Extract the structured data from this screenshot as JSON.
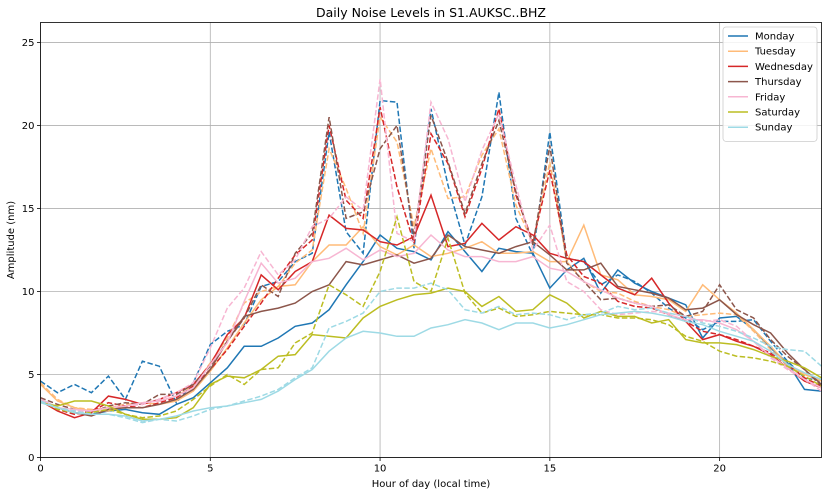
{
  "chart_data": {
    "type": "line",
    "title": "Daily Noise Levels in S1.AUKSC..BHZ",
    "xlabel": "Hour of day (local time)",
    "ylabel": "Amplitude (nm)",
    "xlim": [
      0,
      23
    ],
    "ylim": [
      0,
      26.2
    ],
    "xticks": [
      0,
      5,
      10,
      15,
      20
    ],
    "yticks": [
      0,
      5,
      10,
      15,
      20,
      25
    ],
    "grid": true,
    "legend_position": "top-right",
    "x": [
      0,
      0.5,
      1,
      1.5,
      2,
      2.5,
      3,
      3.5,
      4,
      4.5,
      5,
      5.5,
      6,
      6.5,
      7,
      7.5,
      8,
      8.5,
      9,
      9.5,
      10,
      10.5,
      11,
      11.5,
      12,
      12.5,
      13,
      13.5,
      14,
      14.5,
      15,
      15.5,
      16,
      16.5,
      17,
      17.5,
      18,
      18.5,
      19,
      19.5,
      20,
      20.5,
      21,
      21.5,
      22,
      22.5,
      23
    ],
    "series": [
      {
        "name": "Monday",
        "color": "#1f77b4",
        "solid": [
          3.5,
          3.0,
          2.7,
          2.6,
          2.8,
          2.9,
          2.7,
          2.6,
          3.2,
          3.6,
          4.5,
          5.4,
          6.7,
          6.7,
          7.2,
          7.9,
          8.1,
          8.9,
          10.4,
          11.8,
          13.4,
          12.6,
          12.4,
          11.9,
          13.6,
          12.4,
          11.2,
          12.6,
          12.4,
          12.3,
          10.2,
          11.3,
          12.0,
          9.9,
          11.3,
          10.5,
          10.0,
          9.6,
          9.2,
          7.2,
          8.4,
          8.5,
          7.7,
          6.6,
          5.7,
          4.1,
          4.0
        ],
        "dashed": [
          4.6,
          3.9,
          4.4,
          3.9,
          4.9,
          3.5,
          5.8,
          5.5,
          3.3,
          4.5,
          6.8,
          7.6,
          8.0,
          10.3,
          10.6,
          11.8,
          12.3,
          19.6,
          13.6,
          12.3,
          21.5,
          21.4,
          12.6,
          21.0,
          16.4,
          12.8,
          15.7,
          22.0,
          14.4,
          12.2,
          19.6,
          12.0,
          11.8,
          10.4,
          11.0,
          10.6,
          9.9,
          9.0,
          8.4,
          7.7,
          8.2,
          8.2,
          8.3,
          7.0,
          5.8,
          4.8,
          4.6
        ]
      },
      {
        "name": "Tuesday",
        "color": "#ffbb78",
        "solid": [
          4.4,
          3.4,
          3.0,
          2.8,
          2.8,
          3.1,
          3.3,
          3.2,
          3.4,
          4.0,
          5.2,
          6.6,
          8.1,
          9.5,
          10.3,
          10.4,
          11.8,
          12.8,
          12.8,
          13.9,
          12.7,
          12.2,
          12.8,
          12.1,
          12.3,
          12.6,
          13.0,
          12.3,
          12.3,
          12.4,
          11.8,
          11.8,
          14.0,
          11.0,
          10.7,
          9.8,
          9.7,
          9.5,
          8.8,
          10.4,
          9.5,
          8.7,
          7.7,
          6.7,
          5.6,
          5.0,
          4.6
        ],
        "dashed": [
          4.5,
          3.5,
          3.0,
          2.9,
          3.0,
          3.2,
          3.3,
          3.4,
          3.7,
          4.3,
          5.7,
          7.2,
          9.3,
          10.0,
          10.3,
          11.7,
          12.5,
          18.6,
          16.2,
          13.5,
          20.5,
          19.0,
          13.9,
          18.6,
          15.6,
          15.7,
          18.2,
          19.8,
          15.2,
          12.9,
          17.8,
          11.8,
          10.6,
          10.0,
          9.9,
          9.4,
          9.1,
          8.9,
          8.5,
          8.6,
          8.7,
          8.6,
          7.6,
          6.5,
          5.5,
          5.1,
          4.6
        ]
      },
      {
        "name": "Wednesday",
        "color": "#d62728",
        "solid": [
          3.4,
          2.8,
          2.4,
          2.7,
          3.7,
          3.5,
          3.2,
          3.5,
          3.9,
          4.4,
          5.6,
          7.4,
          8.4,
          11.0,
          10.1,
          11.2,
          11.8,
          14.6,
          13.8,
          13.7,
          13.0,
          12.8,
          13.3,
          15.8,
          12.7,
          12.9,
          14.1,
          13.1,
          13.9,
          13.4,
          12.3,
          12.0,
          11.8,
          11.0,
          10.2,
          9.8,
          10.8,
          9.3,
          8.2,
          7.1,
          7.4,
          7.0,
          6.7,
          6.2,
          5.4,
          4.6,
          4.2
        ],
        "dashed": [
          3.4,
          2.9,
          2.6,
          2.8,
          3.3,
          3.1,
          3.0,
          3.3,
          3.6,
          4.3,
          5.3,
          6.5,
          7.9,
          9.3,
          10.8,
          12.2,
          13.1,
          20.0,
          15.5,
          14.4,
          21.1,
          16.3,
          12.9,
          19.5,
          17.7,
          14.5,
          17.4,
          21.0,
          15.8,
          13.0,
          17.3,
          12.2,
          10.9,
          10.5,
          9.4,
          9.1,
          9.0,
          8.6,
          8.2,
          7.6,
          7.4,
          7.1,
          6.7,
          6.3,
          5.6,
          4.8,
          4.3
        ]
      },
      {
        "name": "Thursday",
        "color": "#8c564b",
        "solid": [
          3.5,
          3.0,
          2.7,
          2.5,
          2.9,
          3.0,
          3.0,
          3.2,
          3.5,
          4.1,
          5.3,
          7.0,
          8.5,
          8.8,
          9.0,
          9.3,
          10.0,
          10.4,
          11.8,
          11.6,
          11.9,
          12.2,
          11.7,
          12.0,
          13.4,
          12.7,
          12.5,
          12.3,
          12.7,
          13.0,
          12.2,
          11.3,
          11.3,
          11.7,
          10.3,
          10.1,
          9.9,
          9.6,
          8.9,
          9.0,
          9.5,
          8.6,
          8.0,
          7.5,
          6.3,
          5.3,
          4.4
        ],
        "dashed": [
          3.6,
          3.2,
          2.9,
          2.7,
          3.1,
          3.3,
          3.2,
          3.8,
          3.8,
          4.4,
          5.5,
          7.0,
          8.4,
          10.4,
          9.7,
          12.3,
          13.5,
          20.5,
          14.4,
          14.8,
          18.6,
          20.0,
          13.3,
          20.6,
          17.8,
          14.7,
          17.7,
          20.3,
          16.0,
          12.8,
          18.8,
          11.7,
          10.6,
          9.5,
          9.6,
          9.3,
          9.1,
          9.2,
          8.5,
          8.8,
          10.4,
          8.9,
          8.4,
          7.1,
          6.1,
          5.3,
          4.3
        ]
      },
      {
        "name": "Friday",
        "color": "#f7b6d2",
        "solid": [
          3.5,
          3.0,
          2.9,
          2.8,
          3.0,
          3.1,
          3.3,
          3.4,
          3.7,
          4.2,
          5.6,
          6.9,
          9.4,
          11.7,
          10.5,
          10.8,
          11.8,
          12.0,
          12.6,
          11.9,
          12.5,
          12.1,
          12.3,
          13.4,
          12.5,
          12.1,
          12.1,
          11.8,
          11.8,
          12.1,
          11.4,
          11.2,
          10.6,
          10.1,
          9.6,
          9.3,
          9.1,
          8.6,
          8.3,
          8.3,
          8.1,
          7.7,
          7.0,
          6.1,
          5.4,
          4.7,
          4.2
        ],
        "dashed": [
          3.5,
          3.0,
          2.8,
          2.8,
          3.0,
          3.1,
          3.2,
          3.5,
          3.9,
          4.5,
          6.6,
          9.0,
          10.2,
          12.4,
          11.0,
          11.9,
          13.9,
          14.4,
          15.7,
          14.9,
          22.8,
          13.5,
          13.0,
          21.4,
          19.2,
          15.4,
          18.5,
          20.7,
          16.4,
          12.5,
          14.0,
          10.6,
          10.0,
          8.9,
          8.6,
          8.7,
          8.8,
          8.7,
          8.5,
          8.2,
          8.3,
          7.9,
          7.0,
          6.0,
          5.3,
          4.7,
          4.0
        ]
      },
      {
        "name": "Saturday",
        "color": "#bcbd22",
        "solid": [
          3.3,
          3.1,
          3.4,
          3.4,
          3.1,
          2.6,
          2.3,
          2.3,
          2.4,
          3.0,
          4.4,
          4.9,
          4.8,
          5.3,
          6.1,
          6.2,
          7.4,
          7.3,
          7.2,
          8.4,
          9.1,
          9.5,
          9.8,
          9.9,
          10.2,
          10.0,
          9.1,
          9.7,
          8.8,
          8.9,
          9.8,
          9.3,
          8.4,
          8.8,
          8.5,
          8.5,
          8.1,
          8.3,
          7.1,
          6.9,
          6.9,
          6.8,
          6.5,
          6.1,
          5.8,
          5.4,
          4.8
        ],
        "dashed": [
          3.4,
          2.9,
          2.7,
          2.7,
          2.9,
          2.6,
          2.4,
          2.5,
          2.8,
          3.5,
          4.3,
          5.0,
          4.4,
          5.3,
          5.4,
          6.9,
          7.5,
          10.4,
          9.8,
          9.1,
          11.2,
          14.5,
          10.6,
          10.0,
          13.2,
          9.9,
          8.7,
          9.0,
          8.5,
          8.6,
          8.8,
          8.7,
          8.6,
          8.6,
          8.4,
          8.4,
          8.3,
          8.0,
          7.3,
          7.0,
          6.4,
          6.1,
          6.0,
          5.8,
          5.5,
          4.9,
          4.3
        ]
      },
      {
        "name": "Sunday",
        "color": "#9edae5",
        "solid": [
          3.3,
          3.0,
          2.7,
          2.6,
          2.6,
          2.5,
          2.2,
          2.3,
          2.5,
          2.8,
          3.0,
          3.1,
          3.3,
          3.5,
          4.0,
          4.7,
          5.3,
          6.4,
          7.2,
          7.6,
          7.5,
          7.3,
          7.3,
          7.8,
          8.0,
          8.3,
          8.1,
          7.7,
          8.1,
          8.1,
          7.8,
          8.0,
          8.3,
          8.6,
          8.7,
          8.8,
          8.7,
          8.5,
          8.2,
          8.0,
          7.6,
          7.3,
          7.0,
          6.4,
          5.6,
          5.1,
          4.7
        ],
        "dashed": [
          3.4,
          3.0,
          2.8,
          2.6,
          2.6,
          2.4,
          2.1,
          2.3,
          2.2,
          2.5,
          2.9,
          3.1,
          3.4,
          3.7,
          4.1,
          4.8,
          5.4,
          7.8,
          8.2,
          8.7,
          10.0,
          10.2,
          10.2,
          10.5,
          10.1,
          8.9,
          8.7,
          9.1,
          8.6,
          8.7,
          8.6,
          8.3,
          8.6,
          8.7,
          9.1,
          8.9,
          9.0,
          8.7,
          8.5,
          8.1,
          7.9,
          7.6,
          7.2,
          6.7,
          6.5,
          6.4,
          5.5
        ]
      }
    ]
  }
}
